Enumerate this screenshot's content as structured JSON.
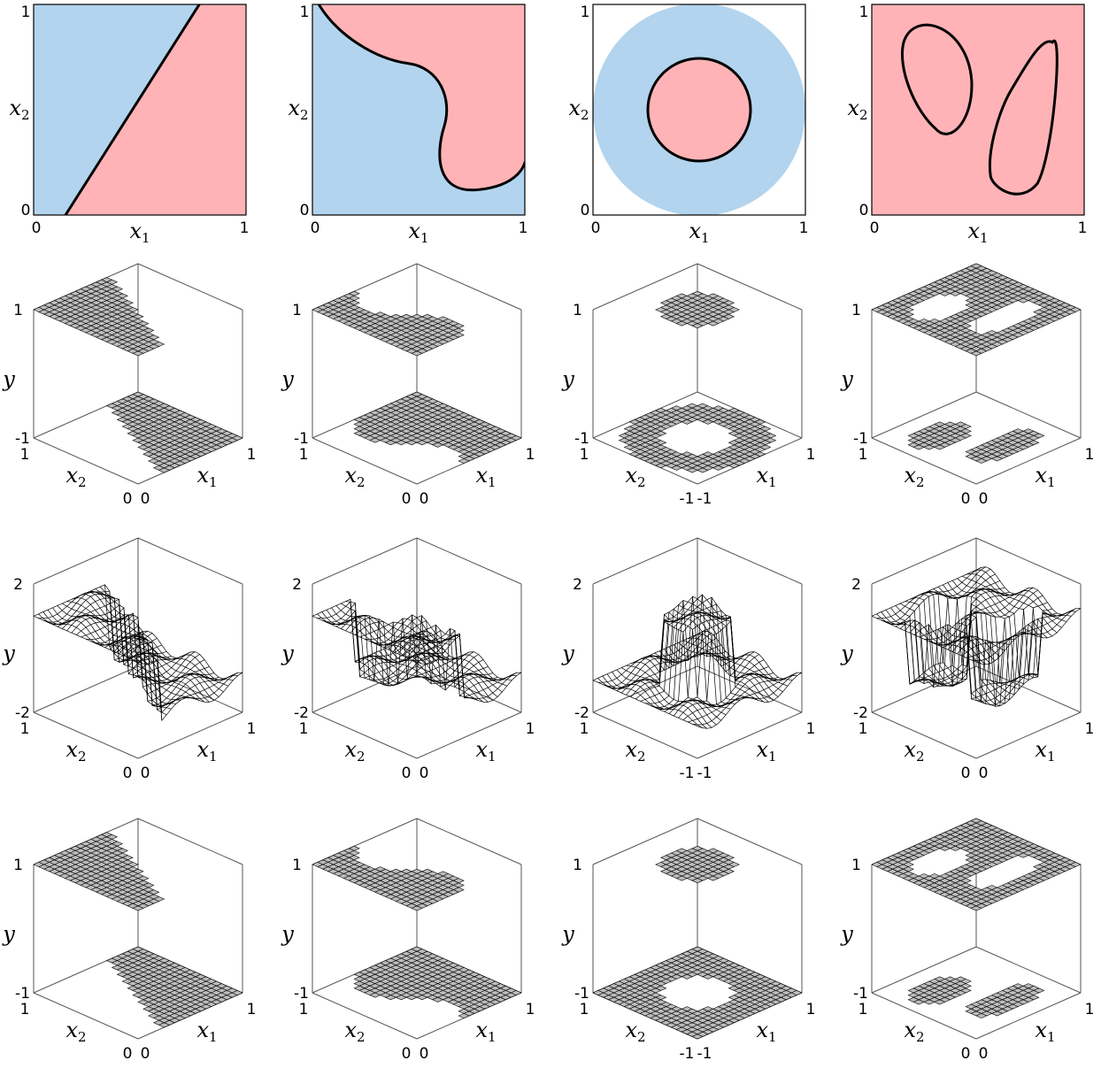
{
  "chart_data": [
    {
      "panel": "r1c1",
      "type": "heatmap",
      "xlabel_sym": "x",
      "xlabel_sub": "1",
      "ylabel_sym": "x",
      "ylabel_sub": "2",
      "xticks": [
        "0",
        "1"
      ],
      "yticks": [
        "0",
        "1"
      ],
      "region_colors": {
        "class_a": "#b3d4ee",
        "class_b": "#ffb3b7"
      },
      "boundary": "line from (0.28,0) to (0.78,1)"
    },
    {
      "panel": "r1c2",
      "type": "heatmap",
      "xlabel_sym": "x",
      "xlabel_sub": "1",
      "ylabel_sym": "x",
      "ylabel_sub": "2",
      "xticks": [
        "0",
        "1"
      ],
      "yticks": [
        "0",
        "1"
      ],
      "boundary": "wavy curve from (0.03,1) to (1,0.25)"
    },
    {
      "panel": "r1c3",
      "type": "heatmap",
      "xlabel_sym": "x",
      "xlabel_sub": "1",
      "ylabel_sym": "x",
      "ylabel_sub": "2",
      "xticks": [
        "0",
        "1"
      ],
      "yticks": [
        "0",
        "1"
      ],
      "boundary": "circle centered (0.5,0.5) radius 0.25 inside outer disk radius 0.5"
    },
    {
      "panel": "r1c4",
      "type": "heatmap",
      "xlabel_sym": "x",
      "xlabel_sub": "1",
      "ylabel_sym": "x",
      "ylabel_sub": "2",
      "xticks": [
        "0",
        "1"
      ],
      "yticks": [
        "0",
        "1"
      ],
      "boundary": "two closed blobs"
    },
    {
      "panel": "r2",
      "type": "surface",
      "zticks": [
        "-1",
        "1"
      ],
      "floor_ticks_square": [
        "1",
        "0",
        "0",
        "1"
      ],
      "floor_ticks_circle": [
        "1",
        "-1",
        "-1",
        "1"
      ]
    },
    {
      "panel": "r3",
      "type": "surface",
      "zticks": [
        "-2",
        "2"
      ]
    },
    {
      "panel": "r4",
      "type": "surface",
      "zticks": [
        "-1",
        "1"
      ]
    }
  ],
  "labels": {
    "y": "y",
    "x": "x",
    "sub1": "1",
    "sub2": "2"
  }
}
